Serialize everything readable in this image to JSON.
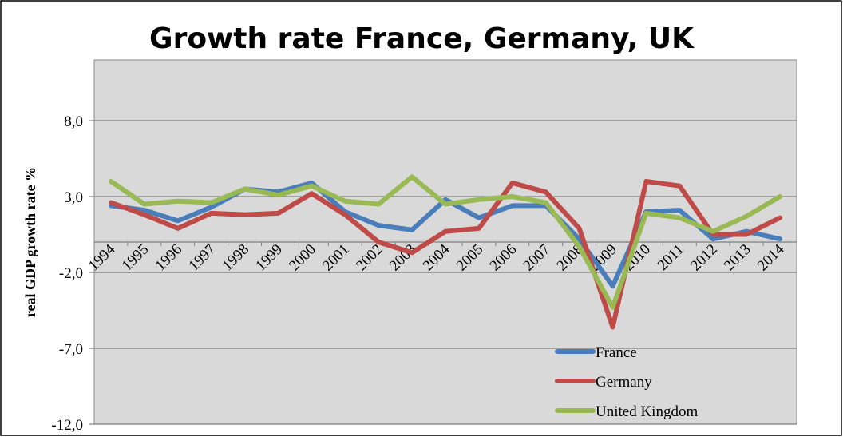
{
  "chart_data": {
    "type": "line",
    "title": "Growth rate France, Germany, UK",
    "xlabel": "",
    "ylabel": "real GDP growth rate %",
    "categories": [
      "1994",
      "1995",
      "1996",
      "1997",
      "1998",
      "1999",
      "2000",
      "2001",
      "2002",
      "2003",
      "2004",
      "2005",
      "2006",
      "2007",
      "2008",
      "2009",
      "2010",
      "2011",
      "2012",
      "2013",
      "2014"
    ],
    "ylim": [
      -12,
      12
    ],
    "yticks": [
      8,
      3,
      -2,
      -7,
      -12
    ],
    "ytick_labels": [
      "8,0",
      "3,0",
      "-2,0",
      "-7,0",
      "-12,0"
    ],
    "x_axis_crosses_at": 0,
    "grid": true,
    "legend": "bottom-right",
    "series": [
      {
        "name": "France",
        "color": "#4a7ebb",
        "values": [
          2.4,
          2.1,
          1.4,
          2.3,
          3.5,
          3.3,
          3.9,
          2.0,
          1.1,
          0.8,
          2.8,
          1.6,
          2.4,
          2.4,
          0.2,
          -2.9,
          2.0,
          2.1,
          0.2,
          0.7,
          0.2
        ]
      },
      {
        "name": "Germany",
        "color": "#be4b48",
        "values": [
          2.6,
          1.8,
          0.9,
          1.9,
          1.8,
          1.9,
          3.2,
          1.8,
          0.0,
          -0.7,
          0.7,
          0.9,
          3.9,
          3.3,
          0.9,
          -5.6,
          4.0,
          3.7,
          0.5,
          0.5,
          1.6
        ]
      },
      {
        "name": "United Kingdom",
        "color": "#98b954",
        "values": [
          4.0,
          2.5,
          2.7,
          2.6,
          3.5,
          3.1,
          3.7,
          2.7,
          2.5,
          4.3,
          2.5,
          2.8,
          3.0,
          2.6,
          -0.3,
          -4.3,
          1.9,
          1.6,
          0.7,
          1.7,
          3.0
        ]
      }
    ]
  }
}
